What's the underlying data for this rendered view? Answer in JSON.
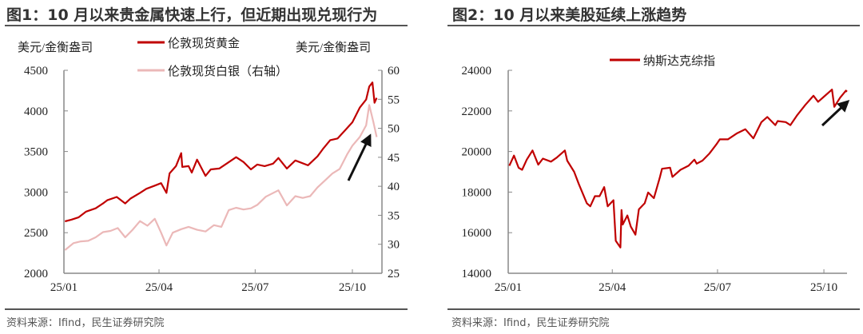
{
  "charts_meta": {
    "left": {
      "title": "图1：10 月以来贵金属快速上行，但近期出现兑现行为",
      "source": "资料来源：Ifind，民生证券研究院"
    },
    "right": {
      "title": "图2：10 月以来美股延续上涨趋势",
      "source": "资料来源：Ifind，民生证券研究院"
    }
  },
  "chart_data": [
    {
      "type": "line",
      "title": "图1：10 月以来贵金属快速上行，但近期出现兑现行为",
      "ylabel": "美元/金衡盎司",
      "ylabel_right": "美元/金衡盎司",
      "ylim": [
        2000,
        4500
      ],
      "ylim_right": [
        25,
        60
      ],
      "yticks": [
        "2000",
        "2500",
        "3000",
        "3500",
        "4000",
        "4500"
      ],
      "yticks_right": [
        "25",
        "30",
        "35",
        "40",
        "45",
        "50",
        "55",
        "60"
      ],
      "xticks": [
        {
          "label": "25/01",
          "date": "2025-01-01"
        },
        {
          "label": "25/04",
          "date": "2025-04-01"
        },
        {
          "label": "25/07",
          "date": "2025-07-01"
        },
        {
          "label": "25/10",
          "date": "2025-10-01"
        }
      ],
      "xlim": [
        "2025-01-01",
        "2025-10-29"
      ],
      "legend_placement": "top-center",
      "grid": false,
      "annotation": "up-arrow",
      "series": [
        {
          "name": "伦敦现货黄金",
          "axis": "left",
          "color": "#C00000",
          "x": [
            "2025-01-02",
            "2025-01-08",
            "2025-01-15",
            "2025-01-22",
            "2025-01-31",
            "2025-02-07",
            "2025-02-11",
            "2025-02-20",
            "2025-02-28",
            "2025-03-05",
            "2025-03-14",
            "2025-03-20",
            "2025-03-28",
            "2025-04-03",
            "2025-04-08",
            "2025-04-11",
            "2025-04-17",
            "2025-04-22",
            "2025-04-23",
            "2025-04-29",
            "2025-05-02",
            "2025-05-07",
            "2025-05-15",
            "2025-05-20",
            "2025-05-28",
            "2025-06-05",
            "2025-06-13",
            "2025-06-20",
            "2025-06-27",
            "2025-07-03",
            "2025-07-10",
            "2025-07-18",
            "2025-07-23",
            "2025-07-31",
            "2025-08-08",
            "2025-08-20",
            "2025-08-29",
            "2025-09-03",
            "2025-09-10",
            "2025-09-17",
            "2025-09-24",
            "2025-10-01",
            "2025-10-08",
            "2025-10-14",
            "2025-10-17",
            "2025-10-20",
            "2025-10-22",
            "2025-10-24"
          ],
          "values": [
            2640,
            2660,
            2690,
            2760,
            2800,
            2860,
            2900,
            2940,
            2860,
            2920,
            2990,
            3040,
            3080,
            3110,
            2990,
            3230,
            3320,
            3480,
            3310,
            3320,
            3240,
            3400,
            3200,
            3280,
            3290,
            3360,
            3430,
            3370,
            3280,
            3340,
            3320,
            3350,
            3420,
            3290,
            3390,
            3330,
            3440,
            3530,
            3640,
            3660,
            3760,
            3860,
            4040,
            4140,
            4300,
            4350,
            4100,
            4160
          ]
        },
        {
          "name": "伦敦现货白银（右轴）",
          "axis": "right",
          "color": "#EBB8B8",
          "x": [
            "2025-01-02",
            "2025-01-10",
            "2025-01-17",
            "2025-01-24",
            "2025-01-31",
            "2025-02-07",
            "2025-02-14",
            "2025-02-21",
            "2025-02-28",
            "2025-03-07",
            "2025-03-14",
            "2025-03-21",
            "2025-03-28",
            "2025-04-03",
            "2025-04-08",
            "2025-04-14",
            "2025-04-22",
            "2025-04-29",
            "2025-05-07",
            "2025-05-15",
            "2025-05-23",
            "2025-05-30",
            "2025-06-06",
            "2025-06-13",
            "2025-06-20",
            "2025-06-27",
            "2025-07-03",
            "2025-07-11",
            "2025-07-23",
            "2025-07-31",
            "2025-08-08",
            "2025-08-15",
            "2025-08-22",
            "2025-08-29",
            "2025-09-05",
            "2025-09-12",
            "2025-09-19",
            "2025-09-26",
            "2025-10-01",
            "2025-10-08",
            "2025-10-14",
            "2025-10-17",
            "2025-10-21",
            "2025-10-24"
          ],
          "values": [
            29.0,
            30.2,
            30.5,
            30.6,
            31.2,
            32.1,
            32.3,
            32.8,
            31.2,
            32.5,
            34.0,
            33.2,
            34.4,
            32.0,
            29.8,
            32.0,
            32.6,
            33.0,
            32.5,
            32.2,
            33.3,
            33.0,
            35.9,
            36.3,
            36.0,
            36.2,
            36.8,
            38.2,
            39.3,
            36.7,
            38.3,
            38.0,
            38.3,
            39.8,
            41.0,
            42.2,
            43.0,
            45.5,
            47.0,
            48.5,
            50.5,
            54.0,
            51.0,
            48.5
          ]
        }
      ]
    },
    {
      "type": "line",
      "title": "图2：10 月以来美股延续上涨趋势",
      "ylim": [
        14000,
        24000
      ],
      "yticks": [
        "14000",
        "16000",
        "18000",
        "20000",
        "22000",
        "24000"
      ],
      "xticks": [
        {
          "label": "25/01",
          "date": "2025-01-01"
        },
        {
          "label": "25/04",
          "date": "2025-04-01"
        },
        {
          "label": "25/07",
          "date": "2025-07-01"
        },
        {
          "label": "25/10",
          "date": "2025-10-01"
        }
      ],
      "xlim": [
        "2025-01-01",
        "2025-10-21"
      ],
      "legend_placement": "top-center",
      "grid": false,
      "annotation": "up-arrow",
      "series": [
        {
          "name": "纳斯达克综指",
          "color": "#C00000",
          "x": [
            "2025-01-02",
            "2025-01-06",
            "2025-01-10",
            "2025-01-13",
            "2025-01-17",
            "2025-01-22",
            "2025-01-27",
            "2025-01-31",
            "2025-02-07",
            "2025-02-12",
            "2025-02-19",
            "2025-02-21",
            "2025-02-27",
            "2025-03-03",
            "2025-03-10",
            "2025-03-13",
            "2025-03-17",
            "2025-03-21",
            "2025-03-25",
            "2025-03-28",
            "2025-04-02",
            "2025-04-04",
            "2025-04-08",
            "2025-04-09",
            "2025-04-10",
            "2025-04-14",
            "2025-04-17",
            "2025-04-21",
            "2025-04-24",
            "2025-04-29",
            "2025-05-02",
            "2025-05-07",
            "2025-05-12",
            "2025-05-14",
            "2025-05-21",
            "2025-05-23",
            "2025-05-30",
            "2025-06-06",
            "2025-06-11",
            "2025-06-13",
            "2025-06-18",
            "2025-06-24",
            "2025-06-30",
            "2025-07-03",
            "2025-07-10",
            "2025-07-18",
            "2025-07-25",
            "2025-08-01",
            "2025-08-08",
            "2025-08-13",
            "2025-08-20",
            "2025-08-22",
            "2025-08-29",
            "2025-09-02",
            "2025-09-08",
            "2025-09-15",
            "2025-09-22",
            "2025-09-26",
            "2025-10-01",
            "2025-10-08",
            "2025-10-10",
            "2025-10-15",
            "2025-10-20",
            "2025-10-21"
          ],
          "values": [
            19300,
            19800,
            19200,
            19100,
            19600,
            20050,
            19350,
            19650,
            19500,
            19700,
            20050,
            19550,
            19000,
            18400,
            17450,
            17300,
            17800,
            17800,
            18250,
            17300,
            17600,
            15600,
            15270,
            17120,
            16400,
            16850,
            16300,
            15900,
            17150,
            17450,
            17980,
            17700,
            18700,
            19150,
            19200,
            18750,
            19100,
            19300,
            19600,
            19400,
            19550,
            19900,
            20350,
            20600,
            20600,
            20900,
            21100,
            20650,
            21450,
            21700,
            21300,
            21500,
            21450,
            21300,
            21800,
            22300,
            22750,
            22450,
            22700,
            23050,
            22200,
            22650,
            23000,
            22950
          ]
        }
      ]
    }
  ]
}
